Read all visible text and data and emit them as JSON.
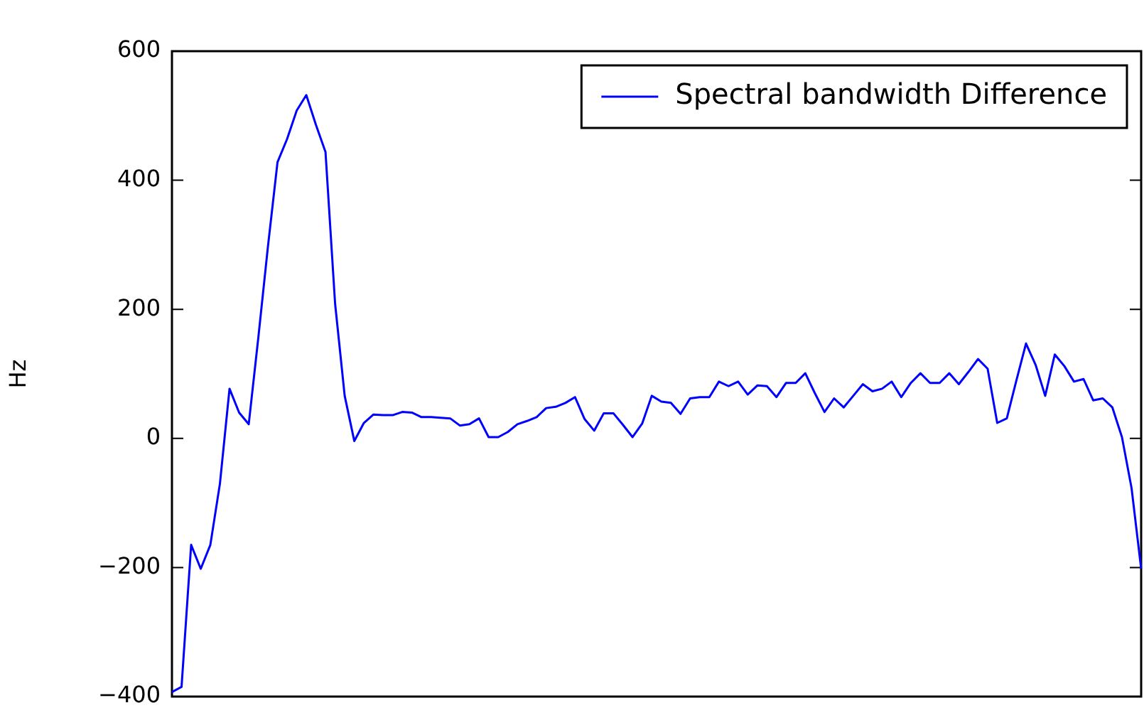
{
  "chart_data": {
    "type": "line",
    "ylabel": "Hz",
    "categories": [
      null,
      null,
      null,
      null,
      null,
      null,
      null,
      null,
      null,
      null,
      null,
      null,
      null,
      null,
      null,
      null,
      null,
      null,
      null,
      null,
      null,
      null,
      null,
      null,
      null,
      null,
      null,
      null,
      null,
      null,
      null,
      null,
      null,
      null,
      null,
      null,
      null,
      null,
      null,
      null,
      null,
      null,
      null,
      null,
      null,
      null,
      null,
      null,
      null,
      null,
      null,
      null,
      null,
      null,
      null,
      null,
      null,
      null,
      null,
      null,
      null,
      null,
      null,
      null,
      null,
      null,
      null,
      null,
      null,
      null,
      null,
      null,
      null,
      null,
      null,
      null,
      null,
      null,
      null,
      null,
      null,
      null,
      null,
      null,
      null,
      null,
      null,
      null,
      null,
      null,
      null,
      null,
      null,
      null,
      null,
      null,
      null,
      null,
      null,
      null,
      null,
      null
    ],
    "series": [
      {
        "name": "Spectral bandwidth Difference",
        "color": "#0000ff",
        "values": [
          -393,
          -385,
          -165,
          -202,
          -165,
          -70,
          77,
          40,
          22,
          156,
          297,
          428,
          464,
          508,
          532,
          486,
          444,
          209,
          66,
          -4,
          24,
          37,
          36,
          36,
          41,
          40,
          33,
          33,
          32,
          31,
          20,
          22,
          31,
          2,
          2,
          10,
          22,
          27,
          33,
          47,
          49,
          55,
          64,
          30,
          12,
          39,
          39,
          21,
          2,
          23,
          66,
          57,
          55,
          38,
          62,
          64,
          64,
          88,
          81,
          88,
          68,
          82,
          81,
          64,
          86,
          86,
          101,
          70,
          41,
          62,
          48,
          66,
          84,
          73,
          77,
          88,
          64,
          86,
          101,
          86,
          86,
          101,
          84,
          103,
          123,
          108,
          24,
          31,
          90,
          147,
          114,
          66,
          130,
          112,
          88,
          92,
          59,
          62,
          48,
          2,
          -77,
          -202
        ]
      }
    ],
    "ylim": [
      -400,
      600
    ],
    "yticks": [
      -400,
      -200,
      0,
      200,
      400,
      600
    ],
    "grid": false,
    "legend": "top right",
    "marker": "none",
    "line_style": "solid",
    "tick_labels": "y"
  }
}
